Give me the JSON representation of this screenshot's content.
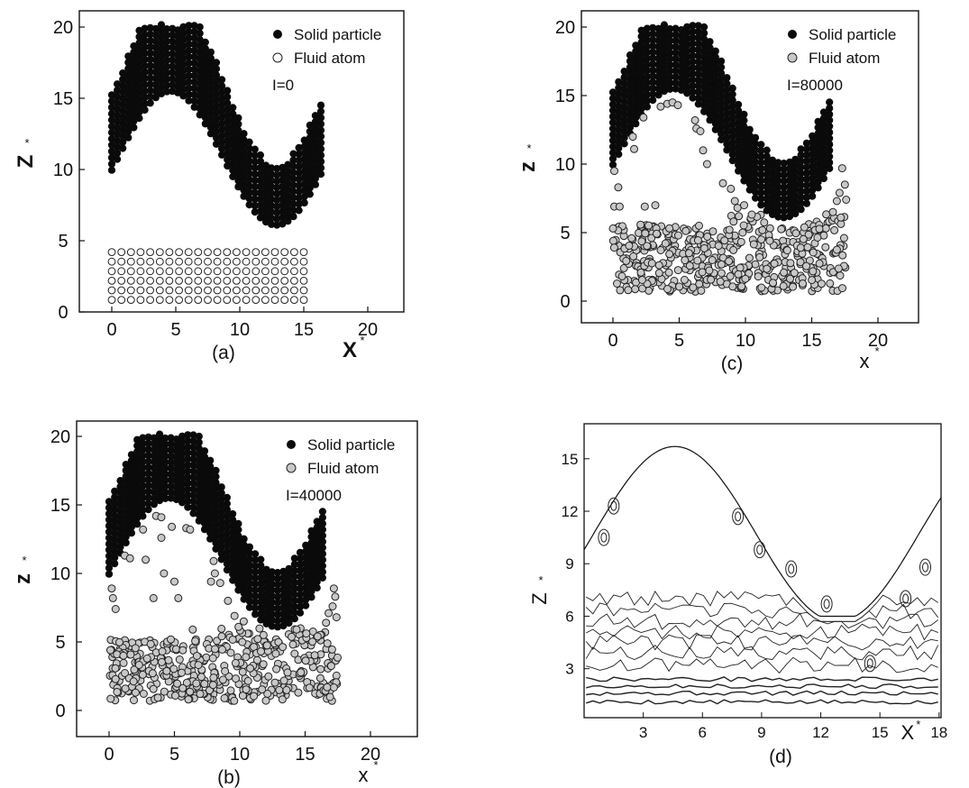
{
  "chart_data": [
    {
      "type": "scatter",
      "panel": "(a)",
      "xlabel": "X",
      "xlabel_sup": "*",
      "ylabel": "Z",
      "ylabel_sup": "*",
      "xlim": [
        -2,
        20
      ],
      "ylim": [
        0,
        21
      ],
      "xticks": [
        0,
        5,
        10,
        15,
        20
      ],
      "yticks": [
        0,
        5,
        10,
        15,
        20
      ],
      "legend": {
        "solid": "Solid particle",
        "fluid": "Fluid atom",
        "iteration": "I=0",
        "fluid_style": "hollow"
      },
      "fluid_grid": {
        "x_start": 0,
        "x_end": 15,
        "x_step": 0.75,
        "z_start": 0.85,
        "z_end": 4.85,
        "z_step": 0.67
      },
      "solid_wall": {
        "x_start": 0,
        "x_end": 16.5,
        "x_step": 0.43,
        "lower_center": 10.8,
        "lower_amp": 4.7,
        "period": 16.5,
        "thickness": 5.5,
        "z_cap": 20.2,
        "z_floor": 6.0
      }
    },
    {
      "type": "scatter",
      "panel": "(b)",
      "xlabel": "x",
      "xlabel_sup": "*",
      "ylabel": "z",
      "ylabel_sup": "*",
      "xlim": [
        -2,
        20
      ],
      "ylim": [
        0,
        21
      ],
      "xticks": [
        0,
        5,
        10,
        15,
        20
      ],
      "yticks": [
        0,
        5,
        10,
        15,
        20
      ],
      "legend": {
        "solid": "Solid particle",
        "fluid": "Fluid atom",
        "iteration": "I=40000",
        "fluid_style": "grey"
      },
      "fluid_scatter": {
        "x_range": [
          0,
          17.5
        ],
        "z_range": [
          0.7,
          5.2
        ],
        "count": 420,
        "seed": 7
      },
      "fluid_isolated": [
        [
          0.1,
          4.4
        ],
        [
          0.2,
          8.9
        ],
        [
          0.3,
          8.2
        ],
        [
          0.5,
          7.4
        ],
        [
          0.6,
          4.1
        ],
        [
          1.1,
          4.0
        ],
        [
          1.2,
          11.3
        ],
        [
          1.6,
          11.1
        ],
        [
          2.6,
          13.2
        ],
        [
          2.8,
          11.0
        ],
        [
          3.4,
          8.2
        ],
        [
          3.6,
          14.2
        ],
        [
          4.0,
          14.1
        ],
        [
          4.0,
          12.6
        ],
        [
          4.2,
          10.0
        ],
        [
          4.8,
          13.4
        ],
        [
          5.0,
          9.4
        ],
        [
          5.3,
          8.2
        ],
        [
          5.9,
          13.3
        ],
        [
          6.2,
          13.2
        ],
        [
          8.0,
          10.9
        ],
        [
          8.1,
          10.0
        ],
        [
          8.5,
          9.3
        ],
        [
          7.8,
          9.4
        ],
        [
          9.1,
          8.0
        ],
        [
          6.4,
          5.9
        ],
        [
          9.6,
          6.9
        ],
        [
          9.9,
          6.1
        ],
        [
          10.3,
          6.5
        ],
        [
          16.8,
          7.1
        ],
        [
          17.1,
          7.6
        ],
        [
          17.3,
          8.3
        ],
        [
          17.2,
          8.9
        ],
        [
          16.6,
          6.4
        ],
        [
          17.4,
          6.8
        ]
      ],
      "solid_wall": {
        "x_start": 0,
        "x_end": 16.5,
        "x_step": 0.43,
        "lower_center": 10.8,
        "lower_amp": 4.7,
        "period": 16.5,
        "thickness": 5.5,
        "z_cap": 20.2,
        "z_floor": 6.0
      }
    },
    {
      "type": "scatter",
      "panel": "(c)",
      "xlabel": "x",
      "xlabel_sup": "*",
      "ylabel": "z",
      "ylabel_sup": "*",
      "xlim": [
        -2,
        20
      ],
      "ylim": [
        0,
        21
      ],
      "xticks": [
        0,
        5,
        10,
        15,
        20
      ],
      "yticks": [
        0,
        5,
        10,
        15,
        20
      ],
      "legend": {
        "solid": "Solid particle",
        "fluid": "Fluid atom",
        "iteration": "I=80000",
        "fluid_style": "grey"
      },
      "fluid_scatter": {
        "x_range": [
          0,
          17.6
        ],
        "z_range": [
          0.7,
          5.6
        ],
        "count": 440,
        "seed": 19
      },
      "fluid_isolated": [
        [
          0.0,
          5.3
        ],
        [
          0.1,
          6.9
        ],
        [
          0.1,
          9.5
        ],
        [
          0.4,
          8.3
        ],
        [
          0.5,
          6.9
        ],
        [
          1.5,
          12.0
        ],
        [
          1.6,
          11.1
        ],
        [
          2.3,
          13.4
        ],
        [
          2.4,
          6.9
        ],
        [
          3.2,
          7.0
        ],
        [
          3.6,
          14.2
        ],
        [
          4.1,
          14.4
        ],
        [
          4.5,
          14.5
        ],
        [
          4.9,
          14.3
        ],
        [
          6.2,
          13.2
        ],
        [
          6.3,
          12.6
        ],
        [
          6.6,
          12.4
        ],
        [
          6.8,
          11.0
        ],
        [
          7.1,
          10.0
        ],
        [
          6.5,
          5.5
        ],
        [
          8.3,
          8.6
        ],
        [
          8.9,
          8.2
        ],
        [
          9.2,
          7.3
        ],
        [
          9.4,
          6.8
        ],
        [
          9.5,
          6.2
        ],
        [
          9.1,
          5.8
        ],
        [
          9.9,
          7.0
        ],
        [
          17.3,
          9.7
        ],
        [
          17.5,
          8.5
        ],
        [
          17.1,
          7.9
        ],
        [
          16.9,
          7.3
        ],
        [
          17.6,
          7.4
        ],
        [
          16.6,
          6.5
        ],
        [
          17.2,
          6.1
        ]
      ],
      "solid_wall": {
        "x_start": 0,
        "x_end": 16.5,
        "x_step": 0.43,
        "lower_center": 10.8,
        "lower_amp": 4.7,
        "period": 16.5,
        "thickness": 5.5,
        "z_cap": 20.2,
        "z_floor": 6.0
      }
    },
    {
      "type": "contour",
      "panel": "(d)",
      "xlabel": "X",
      "xlabel_sup": "*",
      "ylabel": "Z",
      "ylabel_sup": "*",
      "xlim": [
        0,
        18.1
      ],
      "ylim": [
        0.2,
        17.0
      ],
      "xticks": [
        3,
        6,
        9,
        12,
        15,
        18
      ],
      "yticks": [
        3,
        6,
        9,
        12,
        15
      ],
      "wall_curve": {
        "center": 10.7,
        "amp": 5.0,
        "period": 16.5,
        "floor": 6.0
      },
      "contour_levels": [
        1.1,
        1.6,
        2.0,
        2.4,
        3.2,
        3.9,
        4.5,
        5.1,
        5.7,
        6.3,
        7.0
      ]
    }
  ]
}
